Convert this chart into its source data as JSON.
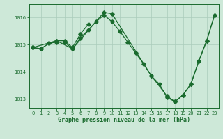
{
  "title": "Graphe pression niveau de la mer (hPa)",
  "bg_color": "#cde8d8",
  "line_color": "#1a6b2e",
  "grid_color": "#aaccbb",
  "ylim": [
    1012.65,
    1016.5
  ],
  "xlim": [
    -0.5,
    23.5
  ],
  "yticks": [
    1013,
    1014,
    1015,
    1016
  ],
  "xticks": [
    0,
    1,
    2,
    3,
    4,
    5,
    6,
    7,
    8,
    9,
    10,
    11,
    12,
    13,
    14,
    15,
    16,
    17,
    18,
    19,
    20,
    21,
    22,
    23
  ],
  "series1_x": [
    0,
    1,
    2,
    3,
    4,
    5,
    6,
    7,
    8,
    9,
    10,
    11,
    12,
    13,
    14,
    15,
    16,
    17,
    18,
    19,
    20,
    21,
    22,
    23
  ],
  "series1_y": [
    1014.9,
    1014.85,
    1015.05,
    1015.1,
    1015.1,
    1014.85,
    1015.25,
    1015.55,
    1015.85,
    1016.1,
    1015.85,
    1015.5,
    1015.1,
    1014.7,
    1014.3,
    1013.85,
    1013.55,
    1013.05,
    1012.9,
    1013.15,
    1013.55,
    1014.4,
    1015.15,
    1016.1
  ],
  "series2_x": [
    0,
    1,
    2,
    3,
    4,
    5,
    6,
    7
  ],
  "series2_y": [
    1014.9,
    1014.85,
    1015.05,
    1015.15,
    1015.15,
    1014.9,
    1015.4,
    1015.75
  ],
  "series3_x": [
    0,
    3,
    5,
    9,
    10,
    15,
    17,
    18,
    19,
    20,
    21,
    22,
    23
  ],
  "series3_y": [
    1014.9,
    1015.15,
    1014.85,
    1016.2,
    1016.15,
    1013.85,
    1013.1,
    1012.9,
    1013.15,
    1013.55,
    1014.4,
    1015.15,
    1016.1
  ]
}
